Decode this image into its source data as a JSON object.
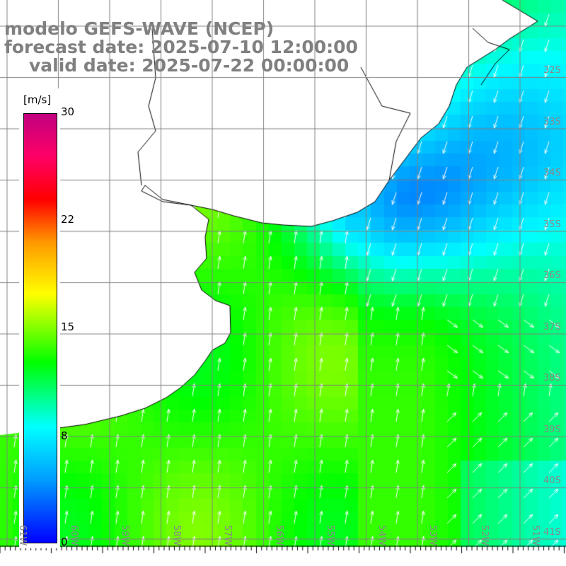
{
  "title": {
    "model": "modelo GEFS-WAVE (NCEP)",
    "forecast": "forecast date: 2025-07-10 12:00:00",
    "valid": "valid date: 2025-07-22 00:00:00"
  },
  "colorbar": {
    "unit": "[m/s]",
    "ticks": [
      "30",
      "22",
      "15",
      "8",
      "0"
    ],
    "colors": [
      "#0000ff",
      "#00ffff",
      "#00ff00",
      "#ffff00",
      "#ff0000",
      "#c0007f"
    ]
  },
  "lat_labels": [
    "32S",
    "33S",
    "34S",
    "35S",
    "36S",
    "37S",
    "38S",
    "39S",
    "40S",
    "41S"
  ],
  "lon_labels": [
    "61W",
    "60W",
    "59W",
    "58W",
    "57W",
    "56W",
    "55W",
    "54W",
    "53W",
    "52W",
    "51W"
  ]
}
